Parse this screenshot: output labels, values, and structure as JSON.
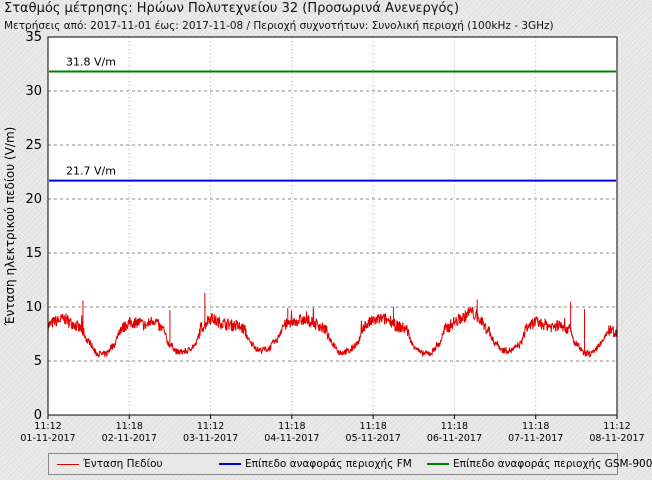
{
  "header": {
    "title": "Σταθμός μέτρησης: Ηρώων Πολυτεχνείου 32 (Προσωρινά Ανενεργός)",
    "subtitle": "Μετρήσεις από: 2017-11-01 έως: 2017-11-08 / Περιοχή συχνοτήτων: Συνολική περιοχή (100kHz - 3GHz)"
  },
  "colors": {
    "field": "#e00000",
    "fm": "#0000e0",
    "gsm": "#008000",
    "grid": "#888888",
    "plot_bg": "#ffffff"
  },
  "chart_data": {
    "type": "line",
    "title": "Σταθμός μέτρησης: Ηρώων Πολυτεχνείου 32 (Προσωρινά Ανενεργός)",
    "ylabel": "Ένταση ηλεκτρικού πεδίου (V/m)",
    "xlabel": "",
    "ylim": [
      0,
      35
    ],
    "yticks": [
      0,
      5,
      10,
      15,
      20,
      25,
      30,
      35
    ],
    "grid": "horizontal-dashed",
    "legend_position": "bottom",
    "xticks": [
      {
        "time": "11:12",
        "date": "01-11-2017"
      },
      {
        "time": "11:18",
        "date": "02-11-2017"
      },
      {
        "time": "11:12",
        "date": "03-11-2017"
      },
      {
        "time": "11:18",
        "date": "04-11-2017"
      },
      {
        "time": "11:18",
        "date": "05-11-2017"
      },
      {
        "time": "11:18",
        "date": "06-11-2017"
      },
      {
        "time": "11:18",
        "date": "07-11-2017"
      },
      {
        "time": "11:12",
        "date": "08-11-2017"
      }
    ],
    "series": [
      {
        "name": "Ένταση Πεδίου",
        "color": "#e00000",
        "x_days": [
          0,
          0.1,
          0.2,
          0.3,
          0.4,
          0.5,
          0.6,
          0.7,
          0.8,
          0.9,
          1.0,
          1.1,
          1.2,
          1.3,
          1.4,
          1.5,
          1.6,
          1.7,
          1.8,
          1.9,
          2.0,
          2.1,
          2.2,
          2.3,
          2.4,
          2.5,
          2.6,
          2.7,
          2.8,
          2.9,
          3.0,
          3.1,
          3.2,
          3.3,
          3.4,
          3.5,
          3.6,
          3.7,
          3.8,
          3.9,
          4.0,
          4.1,
          4.2,
          4.3,
          4.4,
          4.5,
          4.6,
          4.7,
          4.8,
          4.9,
          5.0,
          5.1,
          5.2,
          5.3,
          5.4,
          5.5,
          5.6,
          5.7,
          5.8,
          5.9,
          6.0,
          6.1,
          6.2,
          6.3,
          6.4,
          6.5,
          6.6,
          6.7,
          6.8,
          6.9,
          7.0
        ],
        "values": [
          8.3,
          8.7,
          8.9,
          8.5,
          8.0,
          6.8,
          5.7,
          5.6,
          6.4,
          8.0,
          8.5,
          8.6,
          8.3,
          8.8,
          8.0,
          6.5,
          5.8,
          5.9,
          6.4,
          8.2,
          9.0,
          8.6,
          8.4,
          8.3,
          8.0,
          6.6,
          6.0,
          6.1,
          6.8,
          8.3,
          8.6,
          8.8,
          8.7,
          8.4,
          8.0,
          6.6,
          5.8,
          5.9,
          6.6,
          8.3,
          8.7,
          8.9,
          8.8,
          8.2,
          8.0,
          6.4,
          5.7,
          5.7,
          6.5,
          8.0,
          8.6,
          9.0,
          9.6,
          8.9,
          8.0,
          6.7,
          6.0,
          6.0,
          6.5,
          8.2,
          8.6,
          8.4,
          8.2,
          8.3,
          8.0,
          6.5,
          5.7,
          5.7,
          6.6,
          7.8,
          7.7
        ],
        "spikes": [
          {
            "x_days": 0.43,
            "value": 10.6
          },
          {
            "x_days": 1.5,
            "value": 9.7
          },
          {
            "x_days": 1.93,
            "value": 11.3
          },
          {
            "x_days": 2.95,
            "value": 9.9
          },
          {
            "x_days": 3.18,
            "value": 9.6
          },
          {
            "x_days": 4.25,
            "value": 10.0
          },
          {
            "x_days": 5.2,
            "value": 10.0
          },
          {
            "x_days": 5.28,
            "value": 10.7
          },
          {
            "x_days": 6.43,
            "value": 10.5
          },
          {
            "x_days": 6.6,
            "value": 9.8
          }
        ]
      },
      {
        "name": "Επίπεδο αναφοράς περιοχής FM",
        "color": "#0000e0",
        "constant": 21.7,
        "label": "21.7 V/m"
      },
      {
        "name": "Επίπεδο αναφοράς περιοχής GSM-900",
        "color": "#008000",
        "constant": 31.8,
        "label": "31.8 V/m"
      }
    ]
  }
}
